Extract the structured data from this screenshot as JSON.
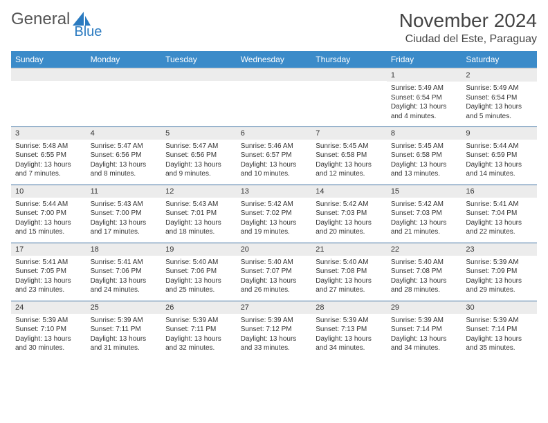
{
  "brand": {
    "part1": "General",
    "part2": "Blue"
  },
  "title": "November 2024",
  "location": "Ciudad del Este, Paraguay",
  "colors": {
    "header_bg": "#3b8bc9",
    "row_border": "#3b6fa0",
    "daynum_bg": "#ececec",
    "text": "#333333",
    "brand_blue": "#2a7ac0"
  },
  "weekdays": [
    "Sunday",
    "Monday",
    "Tuesday",
    "Wednesday",
    "Thursday",
    "Friday",
    "Saturday"
  ],
  "weeks": [
    [
      {
        "n": "",
        "lines": []
      },
      {
        "n": "",
        "lines": []
      },
      {
        "n": "",
        "lines": []
      },
      {
        "n": "",
        "lines": []
      },
      {
        "n": "",
        "lines": []
      },
      {
        "n": "1",
        "lines": [
          "Sunrise: 5:49 AM",
          "Sunset: 6:54 PM",
          "Daylight: 13 hours and 4 minutes."
        ]
      },
      {
        "n": "2",
        "lines": [
          "Sunrise: 5:49 AM",
          "Sunset: 6:54 PM",
          "Daylight: 13 hours and 5 minutes."
        ]
      }
    ],
    [
      {
        "n": "3",
        "lines": [
          "Sunrise: 5:48 AM",
          "Sunset: 6:55 PM",
          "Daylight: 13 hours and 7 minutes."
        ]
      },
      {
        "n": "4",
        "lines": [
          "Sunrise: 5:47 AM",
          "Sunset: 6:56 PM",
          "Daylight: 13 hours and 8 minutes."
        ]
      },
      {
        "n": "5",
        "lines": [
          "Sunrise: 5:47 AM",
          "Sunset: 6:56 PM",
          "Daylight: 13 hours and 9 minutes."
        ]
      },
      {
        "n": "6",
        "lines": [
          "Sunrise: 5:46 AM",
          "Sunset: 6:57 PM",
          "Daylight: 13 hours and 10 minutes."
        ]
      },
      {
        "n": "7",
        "lines": [
          "Sunrise: 5:45 AM",
          "Sunset: 6:58 PM",
          "Daylight: 13 hours and 12 minutes."
        ]
      },
      {
        "n": "8",
        "lines": [
          "Sunrise: 5:45 AM",
          "Sunset: 6:58 PM",
          "Daylight: 13 hours and 13 minutes."
        ]
      },
      {
        "n": "9",
        "lines": [
          "Sunrise: 5:44 AM",
          "Sunset: 6:59 PM",
          "Daylight: 13 hours and 14 minutes."
        ]
      }
    ],
    [
      {
        "n": "10",
        "lines": [
          "Sunrise: 5:44 AM",
          "Sunset: 7:00 PM",
          "Daylight: 13 hours and 15 minutes."
        ]
      },
      {
        "n": "11",
        "lines": [
          "Sunrise: 5:43 AM",
          "Sunset: 7:00 PM",
          "Daylight: 13 hours and 17 minutes."
        ]
      },
      {
        "n": "12",
        "lines": [
          "Sunrise: 5:43 AM",
          "Sunset: 7:01 PM",
          "Daylight: 13 hours and 18 minutes."
        ]
      },
      {
        "n": "13",
        "lines": [
          "Sunrise: 5:42 AM",
          "Sunset: 7:02 PM",
          "Daylight: 13 hours and 19 minutes."
        ]
      },
      {
        "n": "14",
        "lines": [
          "Sunrise: 5:42 AM",
          "Sunset: 7:03 PM",
          "Daylight: 13 hours and 20 minutes."
        ]
      },
      {
        "n": "15",
        "lines": [
          "Sunrise: 5:42 AM",
          "Sunset: 7:03 PM",
          "Daylight: 13 hours and 21 minutes."
        ]
      },
      {
        "n": "16",
        "lines": [
          "Sunrise: 5:41 AM",
          "Sunset: 7:04 PM",
          "Daylight: 13 hours and 22 minutes."
        ]
      }
    ],
    [
      {
        "n": "17",
        "lines": [
          "Sunrise: 5:41 AM",
          "Sunset: 7:05 PM",
          "Daylight: 13 hours and 23 minutes."
        ]
      },
      {
        "n": "18",
        "lines": [
          "Sunrise: 5:41 AM",
          "Sunset: 7:06 PM",
          "Daylight: 13 hours and 24 minutes."
        ]
      },
      {
        "n": "19",
        "lines": [
          "Sunrise: 5:40 AM",
          "Sunset: 7:06 PM",
          "Daylight: 13 hours and 25 minutes."
        ]
      },
      {
        "n": "20",
        "lines": [
          "Sunrise: 5:40 AM",
          "Sunset: 7:07 PM",
          "Daylight: 13 hours and 26 minutes."
        ]
      },
      {
        "n": "21",
        "lines": [
          "Sunrise: 5:40 AM",
          "Sunset: 7:08 PM",
          "Daylight: 13 hours and 27 minutes."
        ]
      },
      {
        "n": "22",
        "lines": [
          "Sunrise: 5:40 AM",
          "Sunset: 7:08 PM",
          "Daylight: 13 hours and 28 minutes."
        ]
      },
      {
        "n": "23",
        "lines": [
          "Sunrise: 5:39 AM",
          "Sunset: 7:09 PM",
          "Daylight: 13 hours and 29 minutes."
        ]
      }
    ],
    [
      {
        "n": "24",
        "lines": [
          "Sunrise: 5:39 AM",
          "Sunset: 7:10 PM",
          "Daylight: 13 hours and 30 minutes."
        ]
      },
      {
        "n": "25",
        "lines": [
          "Sunrise: 5:39 AM",
          "Sunset: 7:11 PM",
          "Daylight: 13 hours and 31 minutes."
        ]
      },
      {
        "n": "26",
        "lines": [
          "Sunrise: 5:39 AM",
          "Sunset: 7:11 PM",
          "Daylight: 13 hours and 32 minutes."
        ]
      },
      {
        "n": "27",
        "lines": [
          "Sunrise: 5:39 AM",
          "Sunset: 7:12 PM",
          "Daylight: 13 hours and 33 minutes."
        ]
      },
      {
        "n": "28",
        "lines": [
          "Sunrise: 5:39 AM",
          "Sunset: 7:13 PM",
          "Daylight: 13 hours and 34 minutes."
        ]
      },
      {
        "n": "29",
        "lines": [
          "Sunrise: 5:39 AM",
          "Sunset: 7:14 PM",
          "Daylight: 13 hours and 34 minutes."
        ]
      },
      {
        "n": "30",
        "lines": [
          "Sunrise: 5:39 AM",
          "Sunset: 7:14 PM",
          "Daylight: 13 hours and 35 minutes."
        ]
      }
    ]
  ]
}
